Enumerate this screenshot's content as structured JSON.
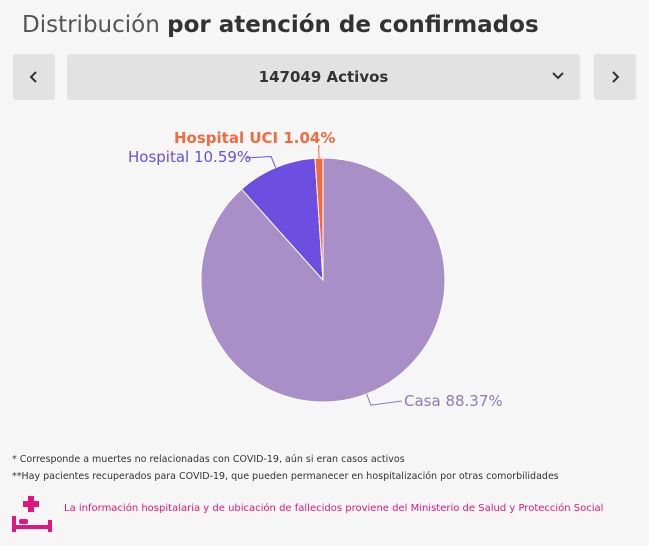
{
  "header": {
    "title_light": "Distribución",
    "title_bold": "por atención de confirmados"
  },
  "selector": {
    "value": "147049 Activos",
    "prev_icon": "chevron-left-icon",
    "next_icon": "chevron-right-icon",
    "caret_icon": "chevron-down-icon"
  },
  "chart_data": {
    "type": "pie",
    "categories": [
      "Casa",
      "Hospital",
      "Hospital UCI"
    ],
    "values": [
      88.37,
      10.59,
      1.04
    ],
    "labels": [
      "Casa 88.37%",
      "Hospital 10.59%",
      "Hospital UCI 1.04%"
    ],
    "colors": [
      "#a98fc7",
      "#6c4ee0",
      "#f26a3d"
    ],
    "label_colors": [
      "#8f7ab8",
      "#6c4ee0",
      "#f26a3d"
    ]
  },
  "notes": {
    "note1": "* Corresponde a muertes no relacionadas con COVID-19, aún si eran casos activos",
    "note2": "**Hay pacientes recuperados para COVID-19, que pueden permanecer en hospitalización por otras comorbilidades"
  },
  "footer": {
    "icon": "hospital-bed-icon",
    "text": "La información hospitalaria y de ubicación de fallecidos proviene del Ministerio de Salud y Protección Social",
    "color": "#e0177d"
  }
}
